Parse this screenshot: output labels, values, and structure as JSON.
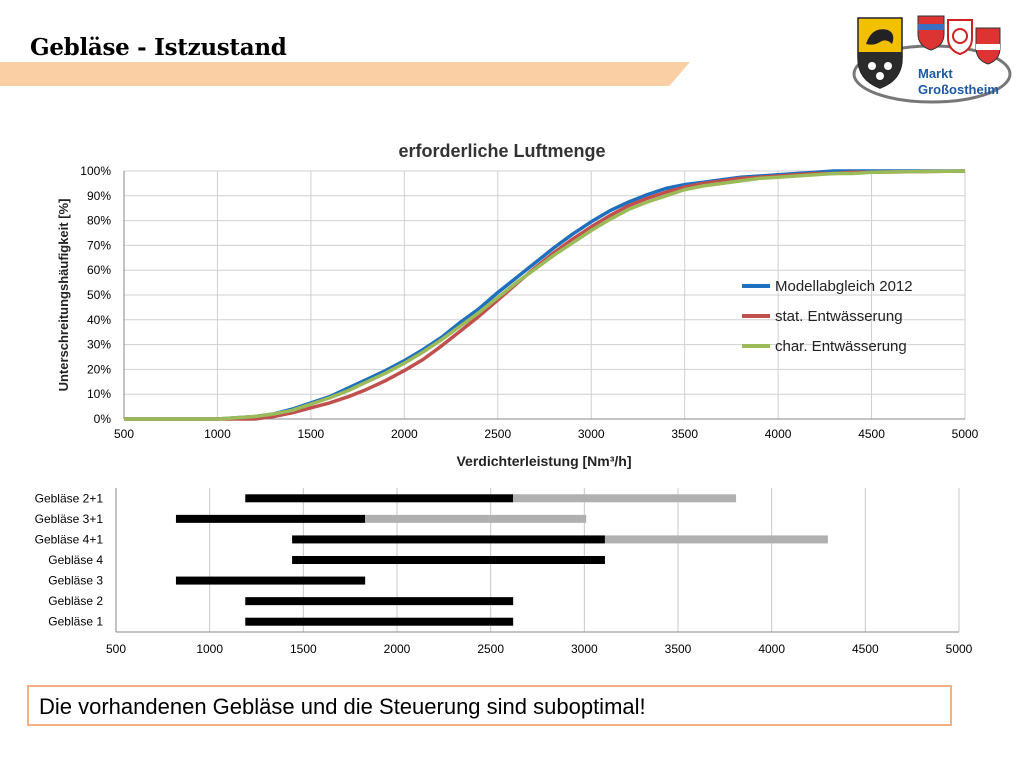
{
  "slide": {
    "title": "Gebläse - Istzustand",
    "logo_text_1": "Markt",
    "logo_text_2": "Großostheim",
    "conclusion": "Die vorhandenen Gebläse und die Steuerung sind suboptimal!"
  },
  "chart_data": [
    {
      "type": "line",
      "title": "erforderliche Luftmenge",
      "xlabel": "Verdichterleistung [Nm³/h]",
      "ylabel": "Unterschreitungshäufigkeit [%]",
      "xlim": [
        500,
        5000
      ],
      "ylim": [
        0,
        100
      ],
      "xticks": [
        500,
        1000,
        1500,
        2000,
        2500,
        3000,
        3500,
        4000,
        4500,
        5000
      ],
      "yticks": [
        0,
        10,
        20,
        30,
        40,
        50,
        60,
        70,
        80,
        90,
        100
      ],
      "ytick_labels": [
        "0%",
        "10%",
        "20%",
        "30%",
        "40%",
        "50%",
        "60%",
        "70%",
        "80%",
        "90%",
        "100%"
      ],
      "grid": true,
      "legend": "center-right",
      "series": [
        {
          "name": "Modellabgleich 2012",
          "color": "#1f6fbf",
          "x": [
            500,
            1000,
            1100,
            1200,
            1300,
            1400,
            1500,
            1600,
            1700,
            1800,
            1900,
            2000,
            2100,
            2200,
            2300,
            2400,
            2500,
            2600,
            2700,
            2800,
            2900,
            3000,
            3100,
            3200,
            3300,
            3400,
            3500,
            3600,
            3700,
            3800,
            3900,
            4000,
            4100,
            4200,
            4300,
            4400,
            4500,
            5000
          ],
          "y": [
            0,
            0,
            0.5,
            1,
            2,
            4,
            6.5,
            9,
            12.5,
            16,
            19.5,
            23.5,
            28,
            33,
            39,
            44.5,
            51,
            57,
            63,
            69,
            74.5,
            79.5,
            84,
            87.5,
            90.5,
            93,
            94.5,
            95.5,
            96.5,
            97.5,
            98,
            98.5,
            99,
            99.5,
            100,
            100,
            100,
            100
          ]
        },
        {
          "name": "stat. Entwässerung",
          "color": "#c0504d",
          "x": [
            500,
            1000,
            1100,
            1200,
            1300,
            1400,
            1500,
            1600,
            1700,
            1800,
            1900,
            2000,
            2100,
            2200,
            2300,
            2400,
            2500,
            2600,
            2700,
            2800,
            2900,
            3000,
            3100,
            3200,
            3300,
            3400,
            3500,
            3600,
            3700,
            3800,
            3900,
            4000,
            4100,
            4200,
            4300,
            4400,
            4500,
            5000
          ],
          "y": [
            0,
            0,
            0,
            0,
            1,
            2.5,
            4.5,
            6.5,
            9,
            12,
            15.5,
            19.5,
            24,
            29.5,
            35.5,
            41.5,
            48,
            54.5,
            61,
            67,
            72.5,
            77.5,
            82,
            86,
            89,
            91.5,
            93.5,
            95,
            96,
            97,
            97.5,
            98,
            98.5,
            99,
            99,
            99.5,
            99.5,
            100
          ]
        },
        {
          "name": "char. Entwässerung",
          "color": "#9bbb59",
          "x": [
            500,
            1000,
            1100,
            1200,
            1300,
            1400,
            1500,
            1600,
            1700,
            1800,
            1900,
            2000,
            2100,
            2200,
            2300,
            2400,
            2500,
            2600,
            2700,
            2800,
            2900,
            3000,
            3100,
            3200,
            3300,
            3400,
            3500,
            3600,
            3700,
            3800,
            3900,
            4000,
            4100,
            4200,
            4300,
            4400,
            4500,
            5000
          ],
          "y": [
            0,
            0,
            0.5,
            1,
            2,
            3.5,
            6,
            8.5,
            11.5,
            15,
            18.5,
            22.5,
            27,
            32,
            37.5,
            43,
            49,
            55,
            60.5,
            66,
            71,
            76,
            80.5,
            84.5,
            87.5,
            90,
            92.5,
            94,
            95,
            96,
            97,
            97.5,
            98,
            98.5,
            99,
            99,
            99.5,
            100
          ]
        }
      ]
    },
    {
      "type": "bar",
      "orientation": "horizontal",
      "xlim": [
        500,
        5000
      ],
      "xticks": [
        500,
        1000,
        1500,
        2000,
        2500,
        3000,
        3500,
        4000,
        4500,
        5000
      ],
      "grid": true,
      "categories": [
        "Gebläse 2+1",
        "Gebläse 3+1",
        "Gebläse 4+1",
        "Gebläse 4",
        "Gebläse 3",
        "Gebläse 2",
        "Gebläse 1"
      ],
      "ranges": [
        {
          "segments": [
            {
              "start": 1190,
              "end": 2620,
              "color": "#000000"
            },
            {
              "start": 2620,
              "end": 3810,
              "color": "#b0b0b0"
            }
          ]
        },
        {
          "segments": [
            {
              "start": 820,
              "end": 1830,
              "color": "#000000"
            },
            {
              "start": 1830,
              "end": 3010,
              "color": "#b0b0b0"
            }
          ]
        },
        {
          "segments": [
            {
              "start": 1440,
              "end": 3110,
              "color": "#000000"
            },
            {
              "start": 3110,
              "end": 4300,
              "color": "#b0b0b0"
            }
          ]
        },
        {
          "segments": [
            {
              "start": 1440,
              "end": 3110,
              "color": "#000000"
            }
          ]
        },
        {
          "segments": [
            {
              "start": 820,
              "end": 1830,
              "color": "#000000"
            }
          ]
        },
        {
          "segments": [
            {
              "start": 1190,
              "end": 2620,
              "color": "#000000"
            }
          ]
        },
        {
          "segments": [
            {
              "start": 1190,
              "end": 2620,
              "color": "#000000"
            }
          ]
        }
      ]
    }
  ]
}
